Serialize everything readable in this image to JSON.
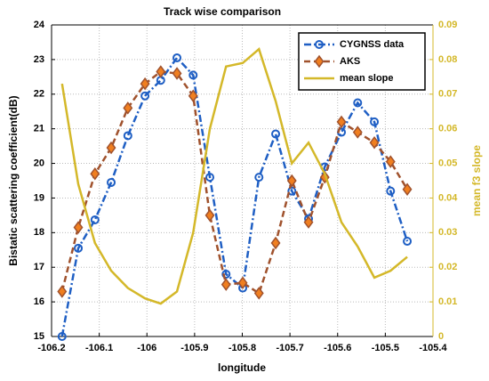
{
  "chart_data": {
    "type": "line",
    "title": "Track wise comparison",
    "xlabel": "longitude",
    "ylabel": "Bistatic scattering coefficient(dB)",
    "y2label": "mean f3 slope",
    "x": [
      -106.178,
      -106.144,
      -106.109,
      -106.075,
      -106.04,
      -106.004,
      -105.971,
      -105.937,
      -105.903,
      -105.868,
      -105.834,
      -105.799,
      -105.765,
      -105.73,
      -105.696,
      -105.661,
      -105.627,
      -105.592,
      -105.558,
      -105.523,
      -105.489,
      -105.454
    ],
    "series": [
      {
        "name": "CYGNSS data",
        "color": "#1f5fc4",
        "linestyle": "dashdot",
        "marker": "circle",
        "values": [
          15.0,
          17.55,
          18.37,
          19.45,
          20.8,
          21.95,
          22.4,
          23.05,
          22.55,
          19.6,
          16.8,
          16.4,
          19.6,
          20.85,
          19.2,
          18.4,
          19.9,
          20.9,
          21.75,
          21.2,
          19.2,
          17.75
        ]
      },
      {
        "name": "AKS",
        "color": "#a0522d",
        "marker_color": "#f07f20",
        "linestyle": "dashed",
        "marker": "diamond",
        "values": [
          16.3,
          18.15,
          19.7,
          20.45,
          21.6,
          22.3,
          22.65,
          22.6,
          21.95,
          18.5,
          16.5,
          16.55,
          16.25,
          17.7,
          19.5,
          18.3,
          19.6,
          21.2,
          20.9,
          20.6,
          20.05,
          19.25
        ]
      },
      {
        "name": "mean slope",
        "color": "#d4b829",
        "linestyle": "solid",
        "marker": "none",
        "axis": "y2",
        "values": [
          0.073,
          0.044,
          0.027,
          0.019,
          0.014,
          0.011,
          0.0095,
          0.013,
          0.03,
          0.06,
          0.078,
          0.079,
          0.083,
          0.068,
          0.05,
          0.056,
          0.047,
          0.033,
          0.026,
          0.017,
          0.019,
          0.023
        ]
      }
    ],
    "xlim": [
      -106.2,
      -105.4
    ],
    "xticks": [
      -106.2,
      -106.1,
      -106,
      -105.9,
      -105.8,
      -105.7,
      -105.6,
      -105.5,
      -105.4
    ],
    "ylim": [
      15,
      24
    ],
    "yticks": [
      15,
      16,
      17,
      18,
      19,
      20,
      21,
      22,
      23,
      24
    ],
    "y2lim": [
      0,
      0.09
    ],
    "y2ticks": [
      0,
      0.01,
      0.02,
      0.03,
      0.04,
      0.05,
      0.06,
      0.07,
      0.08,
      0.09
    ],
    "y2color": "#d4b829",
    "grid": true,
    "legend": "upper right"
  }
}
